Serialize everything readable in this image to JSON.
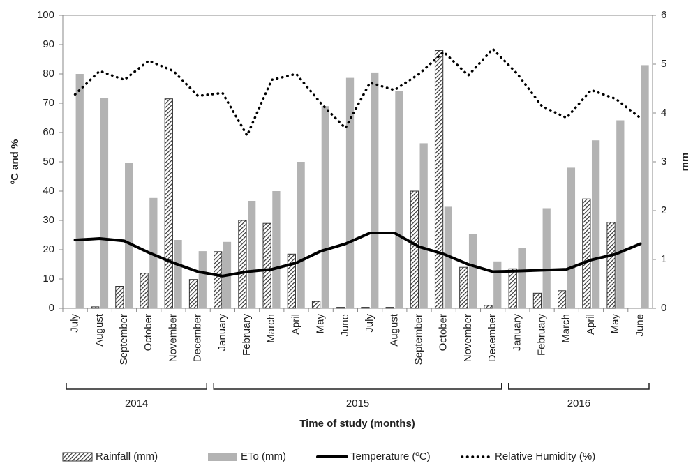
{
  "chart_data": {
    "type": "bar",
    "x_label": "Time of study (months)",
    "y_label": "ºC and %",
    "y2_label": "mm",
    "categories": [
      "July",
      "August",
      "September",
      "October",
      "November",
      "December",
      "January",
      "February",
      "March",
      "April",
      "May",
      "June",
      "July",
      "August",
      "September",
      "October",
      "November",
      "December",
      "January",
      "February",
      "March",
      "April",
      "May",
      "June"
    ],
    "year_groups": [
      {
        "label": "2014",
        "months": 6
      },
      {
        "label": "2015",
        "months": 12
      },
      {
        "label": "2016",
        "months": 6
      }
    ],
    "series": [
      {
        "name": "Rainfall (mm)",
        "type": "bar",
        "axis": "y2",
        "hatched": true,
        "color": "#333333",
        "values": [
          0,
          0.03,
          0.45,
          0.72,
          4.29,
          0.59,
          1.16,
          1.8,
          1.74,
          1.11,
          0.14,
          0.02,
          0.02,
          0.02,
          2.4,
          5.28,
          0.84,
          0.06,
          0.81,
          0.31,
          0.36,
          2.24,
          1.76,
          0
        ]
      },
      {
        "name": "ETo (mm)",
        "type": "bar",
        "axis": "y2",
        "color": "#b3b3b3",
        "values": [
          4.8,
          4.31,
          2.98,
          2.26,
          1.4,
          1.17,
          1.36,
          2.2,
          2.4,
          3.0,
          4.14,
          4.72,
          4.83,
          4.45,
          3.38,
          2.08,
          1.52,
          0.96,
          1.24,
          2.05,
          2.88,
          3.44,
          3.85,
          4.98
        ]
      },
      {
        "name": "Temperature (ºC)",
        "type": "line",
        "color": "#000000",
        "values": [
          23.3,
          23.8,
          23,
          19,
          15.5,
          12.5,
          11,
          12.5,
          13.3,
          15.5,
          19.5,
          22,
          25.7,
          25.7,
          21,
          18.5,
          15,
          12.5,
          12.7,
          13,
          13.3,
          16.5,
          18.5,
          22
        ]
      },
      {
        "name": "Relative Humidity (%)",
        "type": "line",
        "dotted": true,
        "color": "#000000",
        "values": [
          73,
          81,
          78,
          84.5,
          81,
          72.5,
          73.5,
          59,
          78,
          80,
          70,
          61.5,
          77,
          74.5,
          80,
          87.5,
          79.5,
          88.5,
          80,
          69,
          65,
          74.5,
          71.5,
          65
        ]
      }
    ],
    "ylim": [
      0,
      100
    ],
    "yticks": [
      0,
      10,
      20,
      30,
      40,
      50,
      60,
      70,
      80,
      90,
      100
    ],
    "y2lim": [
      0,
      6
    ],
    "y2ticks": [
      0,
      1,
      2,
      3,
      4,
      5,
      6
    ],
    "grid": false,
    "legend": "bottom"
  }
}
